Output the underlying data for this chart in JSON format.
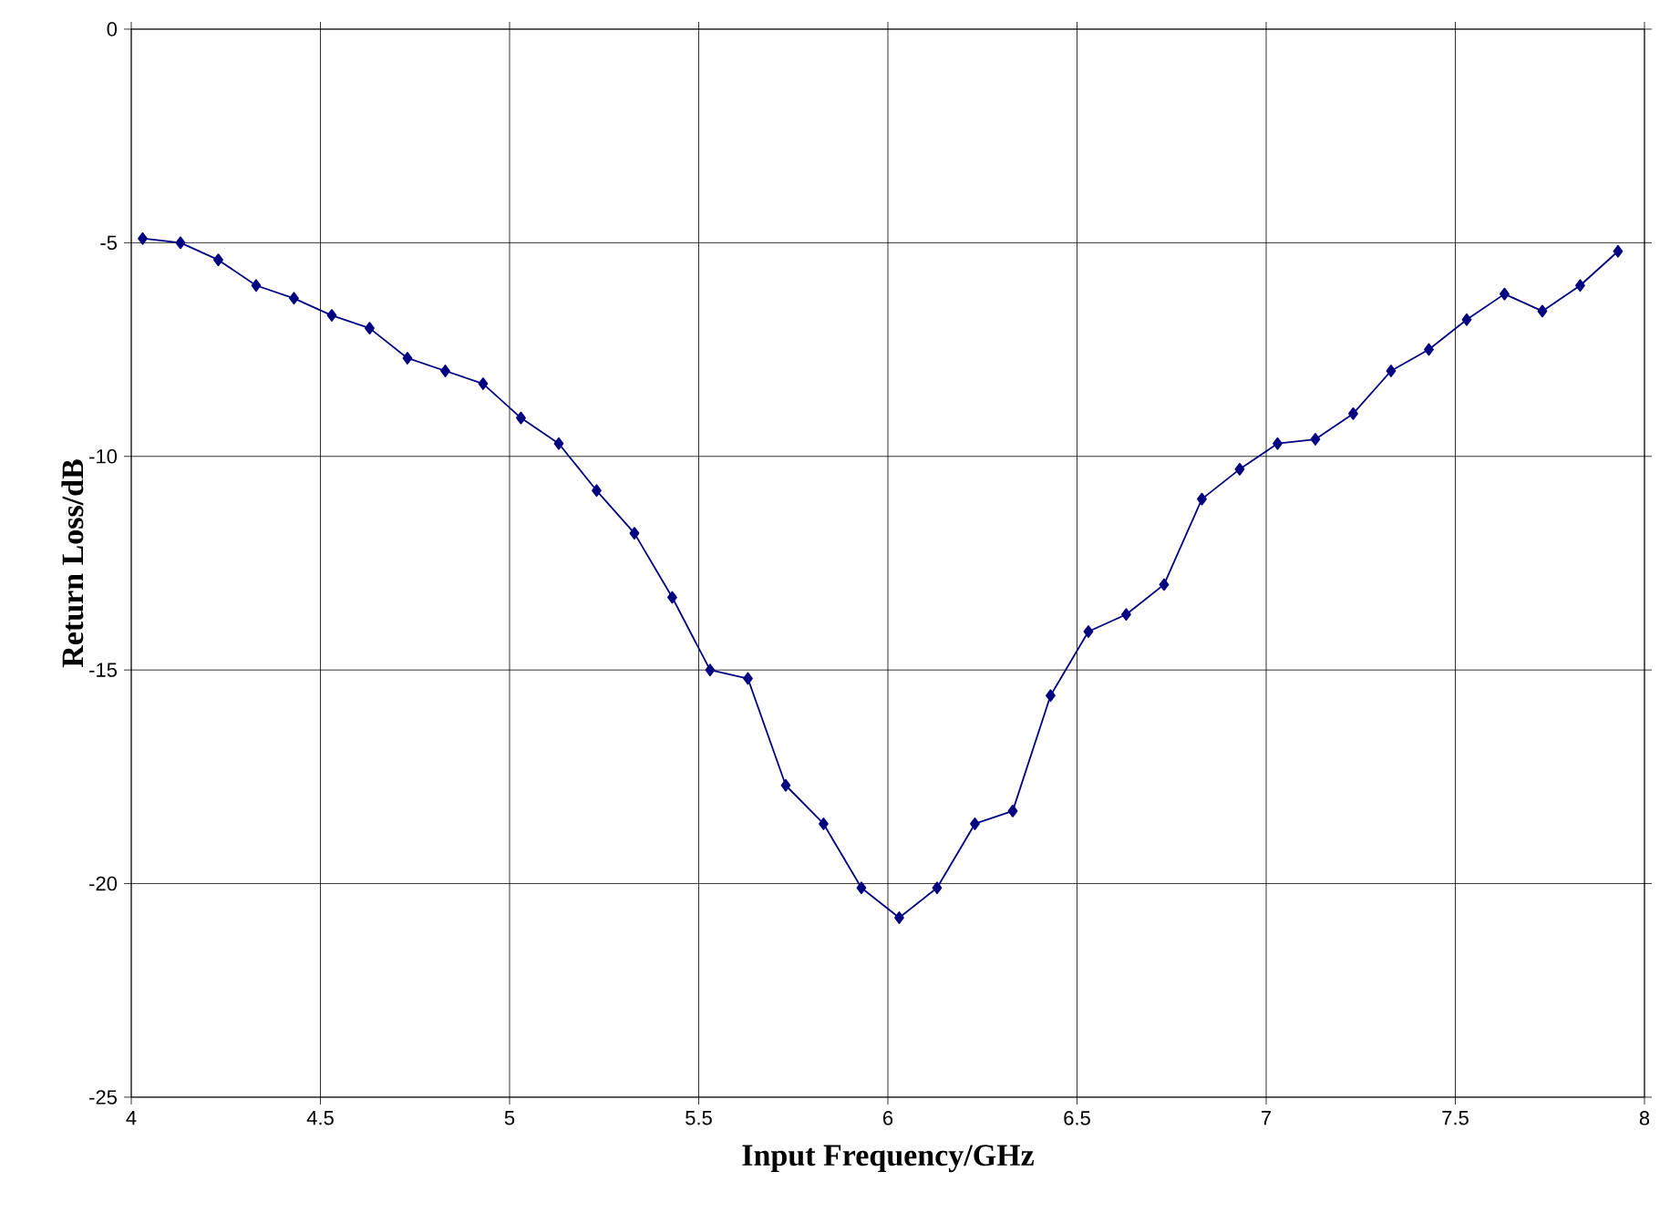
{
  "chart_data": {
    "type": "line",
    "xlabel": "Input Frequency/GHz",
    "ylabel": "Return Loss/dB",
    "x": [
      4.03,
      4.13,
      4.23,
      4.33,
      4.43,
      4.53,
      4.63,
      4.73,
      4.83,
      4.93,
      5.03,
      5.13,
      5.23,
      5.33,
      5.43,
      5.53,
      5.63,
      5.73,
      5.83,
      5.93,
      6.03,
      6.13,
      6.23,
      6.33,
      6.43,
      6.53,
      6.63,
      6.73,
      6.83,
      6.93,
      7.03,
      7.13,
      7.23,
      7.33,
      7.43,
      7.53,
      7.63,
      7.73,
      7.83,
      7.93
    ],
    "series": [
      {
        "color": "#000080",
        "values": [
          -4.9,
          -5.0,
          -5.4,
          -6.0,
          -6.3,
          -6.7,
          -7.0,
          -7.7,
          -8.0,
          -8.3,
          -9.1,
          -9.7,
          -10.8,
          -11.8,
          -13.3,
          -15.0,
          -15.2,
          -17.7,
          -18.6,
          -20.1,
          -20.8,
          -20.1,
          -18.6,
          -18.3,
          -15.6,
          -14.1,
          -13.7,
          -13.0,
          -11.0,
          -10.3,
          -9.7,
          -9.6,
          -9.0,
          -8.0,
          -7.5,
          -6.8,
          -6.2,
          -6.6,
          -6.0,
          -5.2
        ]
      }
    ],
    "xlim": [
      4,
      8
    ],
    "ylim": [
      -25,
      0
    ],
    "xticks": [
      4,
      4.5,
      5,
      5.5,
      6,
      6.5,
      7,
      7.5,
      8
    ],
    "yticks": [
      -25,
      -20,
      -15,
      -10,
      -5,
      0
    ],
    "grid": true,
    "marker": "diamond",
    "line_style": "solid"
  }
}
